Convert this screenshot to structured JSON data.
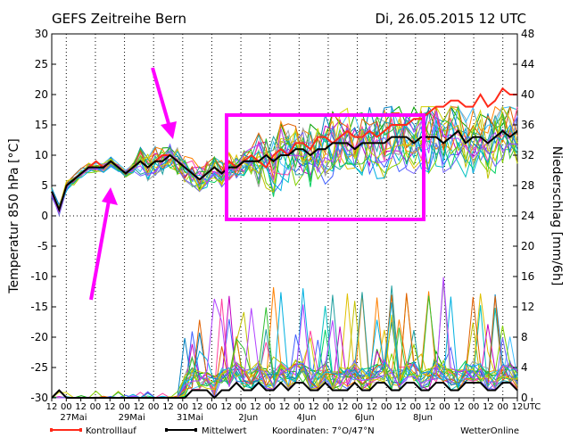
{
  "chart_data": {
    "type": "line",
    "title": "GEFS Zeitreihe Bern",
    "issued": "Di, 26.05.2015 12 UTC",
    "ylabel_left": "Temperatur 850 hPa [°C]",
    "ylabel_right": "Niederschlag [mm/6h]",
    "ylim_left": [
      -30,
      30
    ],
    "yticks_left": [
      "30",
      "25",
      "20",
      "15",
      "10",
      "5",
      "0",
      "-5",
      "-10",
      "-15",
      "-20",
      "-25",
      "-30"
    ],
    "ylim_right": [
      0,
      48
    ],
    "yticks_right": [
      "48",
      "44",
      "40",
      "36",
      "32",
      "28",
      "24",
      "20",
      "16",
      "12",
      "8",
      "4",
      "0"
    ],
    "x_range_hours": [
      0,
      384
    ],
    "x_tick_labels": [
      "12",
      "00",
      "12",
      "00",
      "12",
      "00",
      "12",
      "00",
      "12",
      "00",
      "12",
      "00",
      "12",
      "00",
      "12",
      "00",
      "12",
      "00",
      "12",
      "00",
      "12",
      "00",
      "12",
      "00",
      "12",
      "00",
      "12",
      "00",
      "12",
      "00",
      "12",
      "00",
      "12",
      "UTC"
    ],
    "date_labels": [
      "27Mai",
      "29Mai",
      "31Mai",
      "2Jun",
      "4Jun",
      "6Jun",
      "8Jun"
    ],
    "legend": {
      "control": "Kontrolllauf",
      "mean": "Mittelwert",
      "coords": "Koordinaten: 7°O/47°N",
      "brand": "WetterOnline"
    },
    "colors": {
      "control": "#ff2a1a",
      "mean": "#000000",
      "annotation": "#ff00ff"
    },
    "control_temp": [
      4,
      1,
      5,
      6,
      7,
      8,
      9,
      8,
      9,
      8,
      7,
      8,
      9,
      8,
      9,
      10,
      10,
      9,
      8,
      7,
      6,
      7,
      8,
      7,
      9,
      8,
      9,
      10,
      9,
      8,
      10,
      11,
      10,
      12,
      12,
      11,
      13,
      13,
      12,
      13,
      14,
      13,
      13,
      14,
      13,
      14,
      15,
      15,
      15,
      16,
      16,
      17,
      18,
      18,
      19,
      19,
      18,
      18,
      20,
      18,
      19,
      21,
      20,
      20
    ],
    "mean_temp": [
      4,
      1,
      5,
      6,
      7,
      8,
      8,
      8,
      9,
      8,
      7,
      8,
      9,
      8,
      9,
      9,
      10,
      9,
      8,
      7,
      6,
      7,
      8,
      7,
      8,
      8,
      9,
      9,
      9,
      10,
      9,
      10,
      10,
      11,
      11,
      10,
      11,
      11,
      12,
      12,
      12,
      11,
      12,
      12,
      12,
      12,
      13,
      13,
      13,
      12,
      13,
      13,
      13,
      12,
      13,
      14,
      12,
      13,
      13,
      12,
      13,
      14,
      13,
      14
    ],
    "mean_precip": [
      0,
      1,
      0,
      0,
      0,
      0,
      0,
      0,
      0,
      0,
      0,
      0,
      0,
      0,
      0,
      0,
      0,
      0,
      0,
      1,
      1,
      1,
      0,
      1,
      1,
      2,
      1,
      1,
      2,
      1,
      1,
      2,
      1,
      2,
      2,
      1,
      1,
      2,
      1,
      1,
      1,
      2,
      1,
      1,
      2,
      2,
      1,
      1,
      2,
      2,
      1,
      1,
      2,
      2,
      1,
      1,
      2,
      2,
      2,
      1,
      1,
      2,
      2,
      1
    ]
  }
}
